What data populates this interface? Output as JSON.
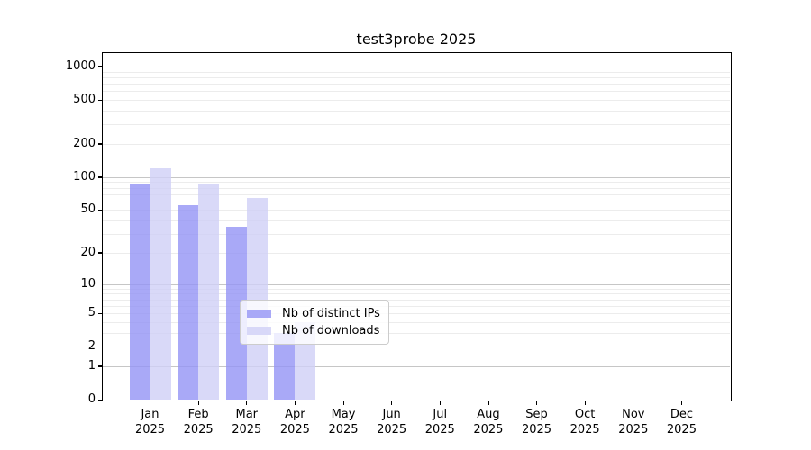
{
  "title": "test3probe 2025",
  "chart_data": {
    "type": "bar",
    "title": "test3probe 2025",
    "x_categories": [
      "Jan",
      "Feb",
      "Mar",
      "Apr",
      "May",
      "Jun",
      "Jul",
      "Aug",
      "Sep",
      "Oct",
      "Nov",
      "Dec"
    ],
    "x_year": "2025",
    "series": [
      {
        "name": "Nb of distinct IPs",
        "color": "#9494f5",
        "alpha": 0.8,
        "values": [
          86,
          55,
          35,
          3,
          0,
          0,
          0,
          0,
          0,
          0,
          0,
          0
        ]
      },
      {
        "name": "Nb of downloads",
        "color": "#d0d0f6",
        "alpha": 0.8,
        "values": [
          120,
          88,
          65,
          4,
          0,
          0,
          0,
          0,
          0,
          0,
          0,
          0
        ]
      }
    ],
    "y_scale": "log1p",
    "y_ticks": [
      0,
      1,
      2,
      5,
      10,
      20,
      50,
      100,
      200,
      500,
      1000
    ],
    "y_major_gridlines": [
      1,
      10,
      100,
      1000
    ],
    "y_minor_gridlines": [
      2,
      3,
      4,
      5,
      6,
      7,
      8,
      9,
      20,
      30,
      40,
      50,
      60,
      70,
      80,
      90,
      200,
      300,
      400,
      500,
      600,
      700,
      800,
      900
    ],
    "ylim": [
      0,
      1300
    ],
    "grid": true,
    "legend_position": "lower center",
    "xlabel": "",
    "ylabel": ""
  },
  "colors": {
    "background": "#ffffff",
    "spine": "#000000",
    "major_grid": "#c6c6c6",
    "minor_grid": "#ececec",
    "text": "#000000",
    "legend_border": "#cccccc"
  }
}
